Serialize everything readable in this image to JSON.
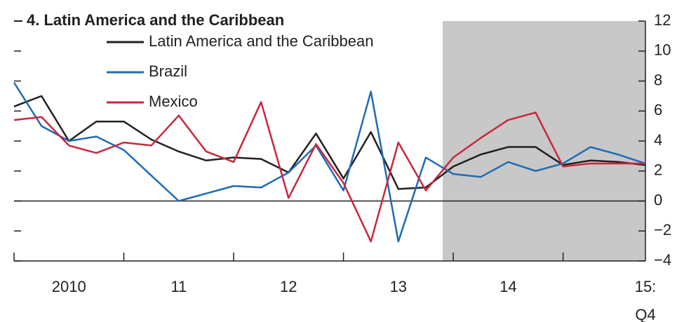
{
  "chart_data": {
    "type": "line",
    "title": "4. Latin America and the Caribbean",
    "categories": [
      null,
      null,
      "2010",
      null,
      null,
      null,
      "11",
      null,
      null,
      null,
      "12",
      null,
      null,
      null,
      "13",
      null,
      null,
      null,
      "14",
      null,
      null,
      null,
      null,
      "15:\nQ4"
    ],
    "series": [
      {
        "name": "Latin America and the Caribbean",
        "color": "#231f20",
        "values": [
          6.3,
          7.0,
          4.0,
          5.3,
          5.3,
          4.1,
          3.3,
          2.7,
          2.9,
          2.8,
          1.9,
          4.5,
          1.5,
          4.6,
          0.8,
          0.9,
          2.3,
          3.1,
          3.6,
          3.6,
          2.4,
          2.7,
          2.6,
          2.4
        ]
      },
      {
        "name": "Brazil",
        "color": "#1f6bb5",
        "values": [
          7.9,
          5.0,
          4.0,
          4.3,
          3.4,
          1.7,
          0.0,
          0.5,
          1.0,
          0.9,
          1.9,
          3.7,
          0.7,
          7.3,
          -2.7,
          2.9,
          1.8,
          1.6,
          2.6,
          2.0,
          2.5,
          3.6,
          3.1,
          2.5
        ]
      },
      {
        "name": "Mexico",
        "color": "#c8283c",
        "values": [
          5.4,
          5.6,
          3.7,
          3.2,
          3.9,
          3.7,
          5.7,
          3.3,
          2.6,
          6.6,
          0.2,
          3.8,
          1.2,
          -2.7,
          3.9,
          0.7,
          2.9,
          4.2,
          5.4,
          5.9,
          2.3,
          2.5,
          2.5,
          2.5
        ]
      }
    ],
    "ylim": [
      -4,
      12
    ],
    "yticks": [
      {
        "value": -4,
        "label": "−4"
      },
      {
        "value": -2,
        "label": "−2"
      },
      0,
      2,
      4,
      6,
      8,
      10,
      12
    ]
  }
}
